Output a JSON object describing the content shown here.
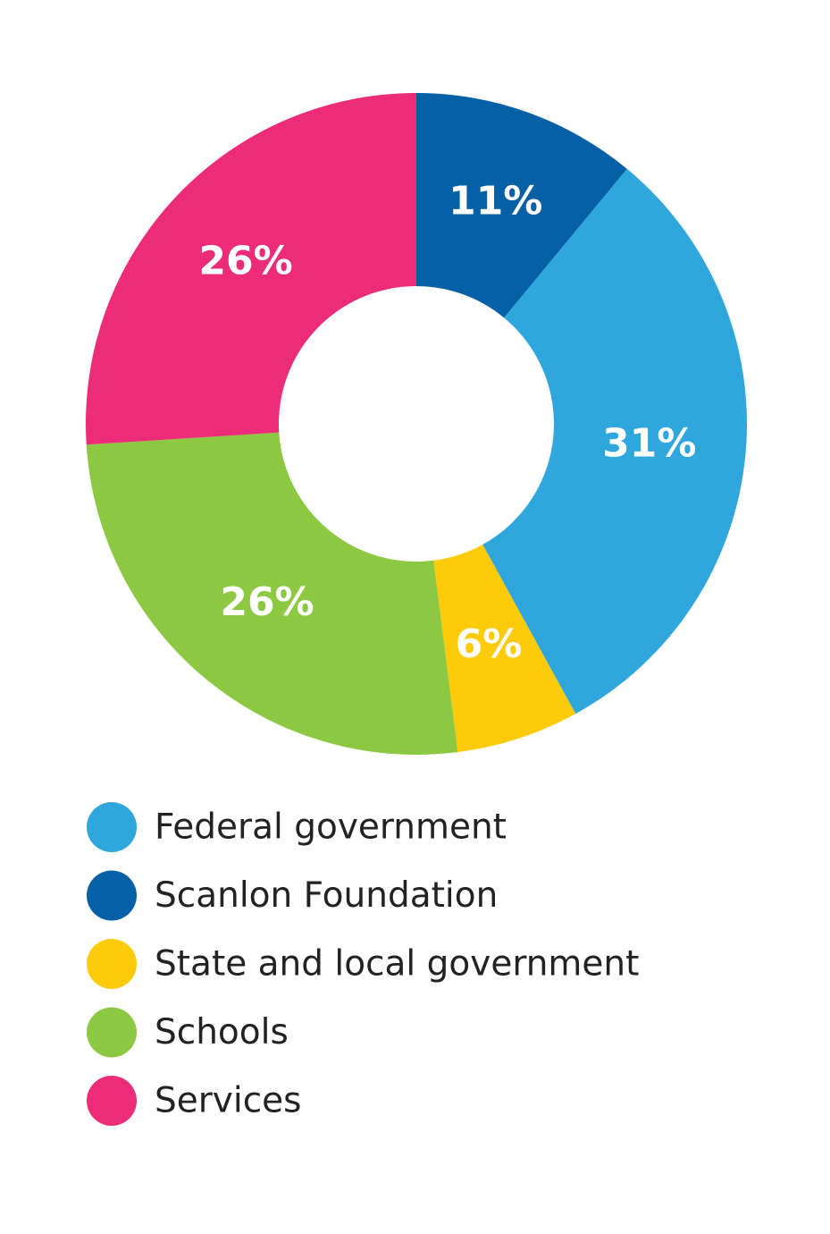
{
  "chart_data": {
    "type": "pie",
    "categories": [
      "Scanlon Foundation",
      "Federal government",
      "State and local government",
      "Schools",
      "Services"
    ],
    "values": [
      11,
      31,
      6,
      26,
      26
    ],
    "value_labels": [
      "11%",
      "31%",
      "6%",
      "26%",
      "26%"
    ],
    "colors": [
      "#0560a5",
      "#2fa7dd",
      "#fecb0a",
      "#8cc841",
      "#ec2b79"
    ],
    "legend": [
      "Federal government",
      "Scanlon Foundation",
      "State and local government",
      "Schools",
      "Services"
    ]
  }
}
